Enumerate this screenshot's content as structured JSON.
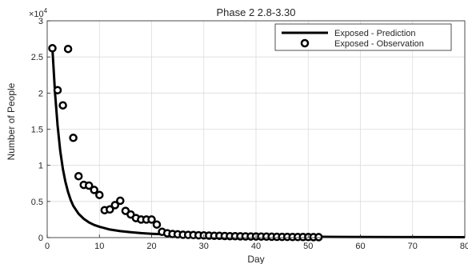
{
  "chart_data": {
    "type": "line",
    "title": "Phase 2 2.8-3.30",
    "xlabel": "Day",
    "ylabel": "Number of People",
    "xlim": [
      0,
      80
    ],
    "ylim": [
      0,
      30000
    ],
    "x_ticks": [
      0,
      10,
      20,
      30,
      40,
      50,
      60,
      70,
      80
    ],
    "y_ticks": [
      0,
      5000,
      10000,
      15000,
      20000,
      25000,
      30000
    ],
    "y_tick_labels": [
      "0",
      "0.5",
      "1",
      "1.5",
      "2",
      "2.5",
      "3"
    ],
    "y_multiplier_base": "×10",
    "y_multiplier_exp": "4",
    "grid": true,
    "legend_position": "top-right",
    "series": [
      {
        "name": "Exposed - Prediction",
        "style": "line",
        "color": "#000000",
        "x": [
          1,
          1.5,
          2,
          2.5,
          3,
          3.5,
          4,
          4.5,
          5,
          6,
          7,
          8,
          9,
          10,
          12,
          14,
          16,
          18,
          20,
          22,
          25,
          30,
          35,
          40,
          45,
          50,
          55,
          60,
          70,
          80
        ],
        "y": [
          26200,
          20000,
          15500,
          12000,
          9500,
          7700,
          6300,
          5200,
          4400,
          3300,
          2600,
          2100,
          1750,
          1500,
          1120,
          900,
          740,
          620,
          530,
          460,
          380,
          290,
          230,
          185,
          150,
          125,
          105,
          90,
          65,
          50
        ]
      },
      {
        "name": "Exposed - Observation",
        "style": "marker",
        "color": "#000000",
        "x": [
          1,
          2,
          3,
          4,
          5,
          6,
          7,
          8,
          9,
          10,
          11,
          12,
          13,
          14,
          15,
          16,
          17,
          18,
          19,
          20,
          21,
          22,
          23,
          24,
          25,
          26,
          27,
          28,
          29,
          30,
          31,
          32,
          33,
          34,
          35,
          36,
          37,
          38,
          39,
          40,
          41,
          42,
          43,
          44,
          45,
          46,
          47,
          48,
          49,
          50,
          51,
          52
        ],
        "y": [
          26200,
          20400,
          18300,
          26100,
          13800,
          8500,
          7300,
          7200,
          6600,
          5900,
          3800,
          3900,
          4500,
          5100,
          3700,
          3200,
          2700,
          2500,
          2500,
          2500,
          1800,
          800,
          600,
          500,
          450,
          400,
          380,
          350,
          320,
          300,
          280,
          260,
          240,
          220,
          200,
          190,
          180,
          170,
          160,
          150,
          140,
          130,
          120,
          110,
          100,
          95,
          90,
          85,
          80,
          75,
          70,
          65
        ]
      }
    ]
  }
}
